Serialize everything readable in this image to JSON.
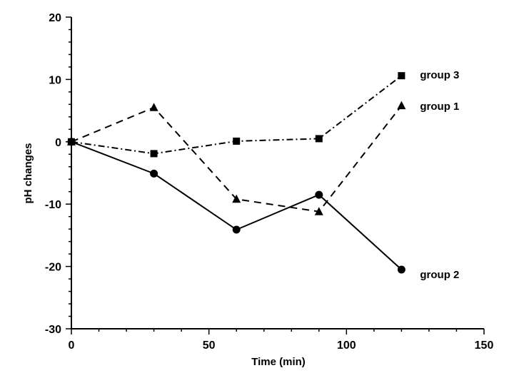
{
  "chart_data": {
    "type": "line",
    "title": "",
    "xlabel": "Time (min)",
    "ylabel": "pH changes",
    "xlim": [
      0,
      150
    ],
    "ylim": [
      -30,
      20
    ],
    "xticks": [
      0,
      50,
      100,
      150
    ],
    "yticks": [
      -30,
      -20,
      -10,
      0,
      10,
      20
    ],
    "grid": false,
    "legend": "none",
    "series": [
      {
        "name": "group 1",
        "line_style": "dashed",
        "marker": "triangle",
        "x": [
          0,
          30,
          60,
          90,
          120
        ],
        "y": [
          0,
          5.5,
          -9.2,
          -11.2,
          5.8
        ]
      },
      {
        "name": "group 2",
        "line_style": "solid",
        "marker": "circle",
        "x": [
          0,
          30,
          60,
          90,
          120
        ],
        "y": [
          0,
          -5.1,
          -14.1,
          -8.5,
          -20.5
        ]
      },
      {
        "name": "group 3",
        "line_style": "dash-dot",
        "marker": "square",
        "x": [
          0,
          30,
          60,
          90,
          120
        ],
        "y": [
          0,
          -1.9,
          0.1,
          0.5,
          10.6
        ]
      }
    ]
  }
}
